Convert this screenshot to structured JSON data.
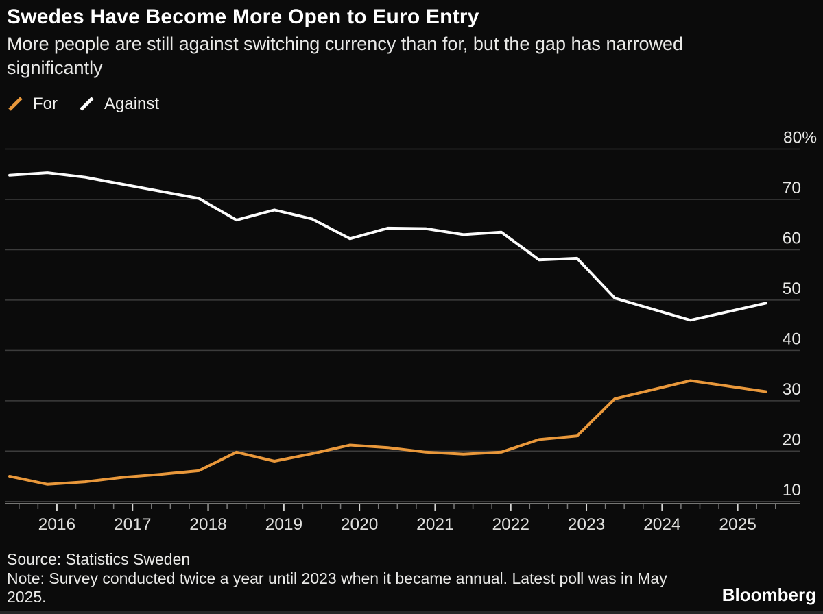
{
  "header": {
    "title": "Swedes Have Become More Open to Euro Entry",
    "subtitle": "More people are still against switching currency than for, but the gap has narrowed significantly"
  },
  "legend": {
    "items": [
      {
        "label": "For",
        "color": "#E9983B",
        "icon": "slash-icon"
      },
      {
        "label": "Against",
        "color": "#FCFCFC",
        "icon": "slash-icon"
      }
    ]
  },
  "chart_data": {
    "type": "line",
    "x": [
      "2015-05",
      "2015-11",
      "2016-05",
      "2016-11",
      "2017-05",
      "2017-11",
      "2018-05",
      "2018-11",
      "2019-05",
      "2019-11",
      "2020-05",
      "2020-11",
      "2021-05",
      "2021-11",
      "2022-05",
      "2022-11",
      "2023-05",
      "2024-05",
      "2025-05"
    ],
    "series": [
      {
        "name": "For",
        "color": "#E9983B",
        "values": [
          15.0,
          13.4,
          13.9,
          14.8,
          15.4,
          16.1,
          19.8,
          18.0,
          19.5,
          21.2,
          20.7,
          19.8,
          19.4,
          19.8,
          22.3,
          23.0,
          30.4,
          34.0,
          31.8
        ]
      },
      {
        "name": "Against",
        "color": "#FCFCFC",
        "values": [
          74.8,
          75.3,
          74.4,
          73.0,
          71.6,
          70.2,
          65.9,
          67.9,
          66.1,
          62.2,
          64.3,
          64.2,
          63.0,
          63.5,
          58.0,
          58.3,
          50.4,
          46.0,
          49.4
        ]
      }
    ],
    "title": "Swedes Have Become More Open to Euro Entry",
    "subtitle": "More people are still against switching currency than for, but the gap has narrowed significantly",
    "xlabel": "",
    "ylabel": "",
    "ylim": [
      8,
      82
    ],
    "yticks": [
      10,
      20,
      30,
      40,
      50,
      60,
      70,
      80
    ],
    "ytick_top_label": "80%",
    "xticks": [
      2016,
      2017,
      2018,
      2019,
      2020,
      2021,
      2022,
      2023,
      2024,
      2025
    ],
    "grid": "horizontal",
    "y_axis_side": "right",
    "legend_position": "top-left",
    "colors": {
      "background": "#0b0b0b",
      "gridline": "#3c3c3c",
      "axis_line": "#999997",
      "minor_tick": "#7a7a7a",
      "year_tick": "#d5d5d3",
      "axis_label": "#e8e8e6"
    }
  },
  "footer": {
    "source": "Source: Statistics Sweden",
    "note": "Note: Survey conducted twice a year until 2023 when it became annual. Latest poll was in May 2025.",
    "brand": "Bloomberg"
  }
}
